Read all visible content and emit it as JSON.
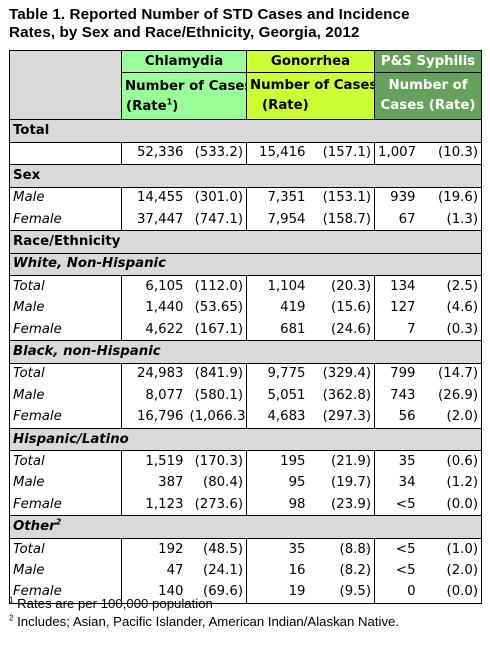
{
  "title": {
    "line1": "Table 1. Reported Number of STD Cases and Incidence",
    "line2": "Rates, by Sex and Race/Ethnicity, Georgia, 2012"
  },
  "header": {
    "chlamydia": "Chlamydia",
    "gonorrhea": "Gonorrhea",
    "syphilis": "P&S Syphilis",
    "chl_sub1": "Number of Cases",
    "chl_sub2_pre": "(Rate",
    "chl_sub2_sup": "1",
    "chl_sub2_post": ")",
    "gon_sub1": "Number of Cases",
    "gon_sub2": "(Rate)",
    "syp_sub1": "Number of",
    "syp_sub2": "Cases (Rate)"
  },
  "sections": {
    "total": "Total",
    "sex": "Sex",
    "race": "Race/Ethnicity",
    "white": "White, Non-Hispanic",
    "black": "Black, non-Hispanic",
    "hispanic": "Hispanic/Latino",
    "other": "Other",
    "other_sup": "2"
  },
  "rows": {
    "total": {
      "label": "",
      "c_n": "52,336",
      "c_r": "(533.2)",
      "g_n": "15,416",
      "g_r": "(157.1)",
      "s_n": "1,007",
      "s_r": "(10.3)"
    },
    "sex_male": {
      "label": "Male",
      "c_n": "14,455",
      "c_r": "(301.0)",
      "g_n": "7,351",
      "g_r": "(153.1)",
      "s_n": "939",
      "s_r": "(19.6)"
    },
    "sex_female": {
      "label": "Female",
      "c_n": "37,447",
      "c_r": "(747.1)",
      "g_n": "7,954",
      "g_r": "(158.7)",
      "s_n": "67",
      "s_r": "(1.3)"
    },
    "white_total": {
      "label": "Total",
      "c_n": "6,105",
      "c_r": "(112.0)",
      "g_n": "1,104",
      "g_r": "(20.3)",
      "s_n": "134",
      "s_r": "(2.5)"
    },
    "white_male": {
      "label": "Male",
      "c_n": "1,440",
      "c_r": "(53.65)",
      "g_n": "419",
      "g_r": "(15.6)",
      "s_n": "127",
      "s_r": "(4.6)"
    },
    "white_female": {
      "label": "Female",
      "c_n": "4,622",
      "c_r": "(167.1)",
      "g_n": "681",
      "g_r": "(24.6)",
      "s_n": "7",
      "s_r": "(0.3)"
    },
    "black_total": {
      "label": "Total",
      "c_n": "24,983",
      "c_r": "(841.9)",
      "g_n": "9,775",
      "g_r": "(329.4)",
      "s_n": "799",
      "s_r": "(14.7)"
    },
    "black_male": {
      "label": "Male",
      "c_n": "8,077",
      "c_r": "(580.1)",
      "g_n": "5,051",
      "g_r": "(362.8)",
      "s_n": "743",
      "s_r": "(26.9)"
    },
    "black_female": {
      "label": "Female",
      "c_n": "16,796",
      "c_r": "(1,066.3)",
      "g_n": "4,683",
      "g_r": "(297.3)",
      "s_n": "56",
      "s_r": "(2.0)"
    },
    "hisp_total": {
      "label": "Total",
      "c_n": "1,519",
      "c_r": "(170.3)",
      "g_n": "195",
      "g_r": "(21.9)",
      "s_n": "35",
      "s_r": "(0.6)"
    },
    "hisp_male": {
      "label": "Male",
      "c_n": "387",
      "c_r": "(80.4)",
      "g_n": "95",
      "g_r": "(19.7)",
      "s_n": "34",
      "s_r": "(1.2)"
    },
    "hisp_female": {
      "label": "Female",
      "c_n": "1,123",
      "c_r": "(273.6)",
      "g_n": "98",
      "g_r": "(23.9)",
      "s_n": "<5",
      "s_r": "(0.0)"
    },
    "other_total": {
      "label": "Total",
      "c_n": "192",
      "c_r": "(48.5)",
      "g_n": "35",
      "g_r": "(8.8)",
      "s_n": "<5",
      "s_r": "(1.0)"
    },
    "other_male": {
      "label": "Male",
      "c_n": "47",
      "c_r": "(24.1)",
      "g_n": "16",
      "g_r": "(8.2)",
      "s_n": "<5",
      "s_r": "(2.0)"
    },
    "other_female": {
      "label": "Female",
      "c_n": "140",
      "c_r": "(69.6)",
      "g_n": "19",
      "g_r": "(9.5)",
      "s_n": "0",
      "s_r": "(0.0)"
    }
  },
  "footnotes": {
    "n1_sup": "1",
    "n1": "Rates are per 100,000 population",
    "n2_sup": "2",
    "n2": "Includes; Asian, Pacific Islander, American Indian/Alaskan Native."
  },
  "colors": {
    "header_gray": "#d9d9d9",
    "chlamydia_green": "#99ff99",
    "gonorrhea_lime": "#ccff33",
    "syphilis_green": "#66a35a"
  }
}
